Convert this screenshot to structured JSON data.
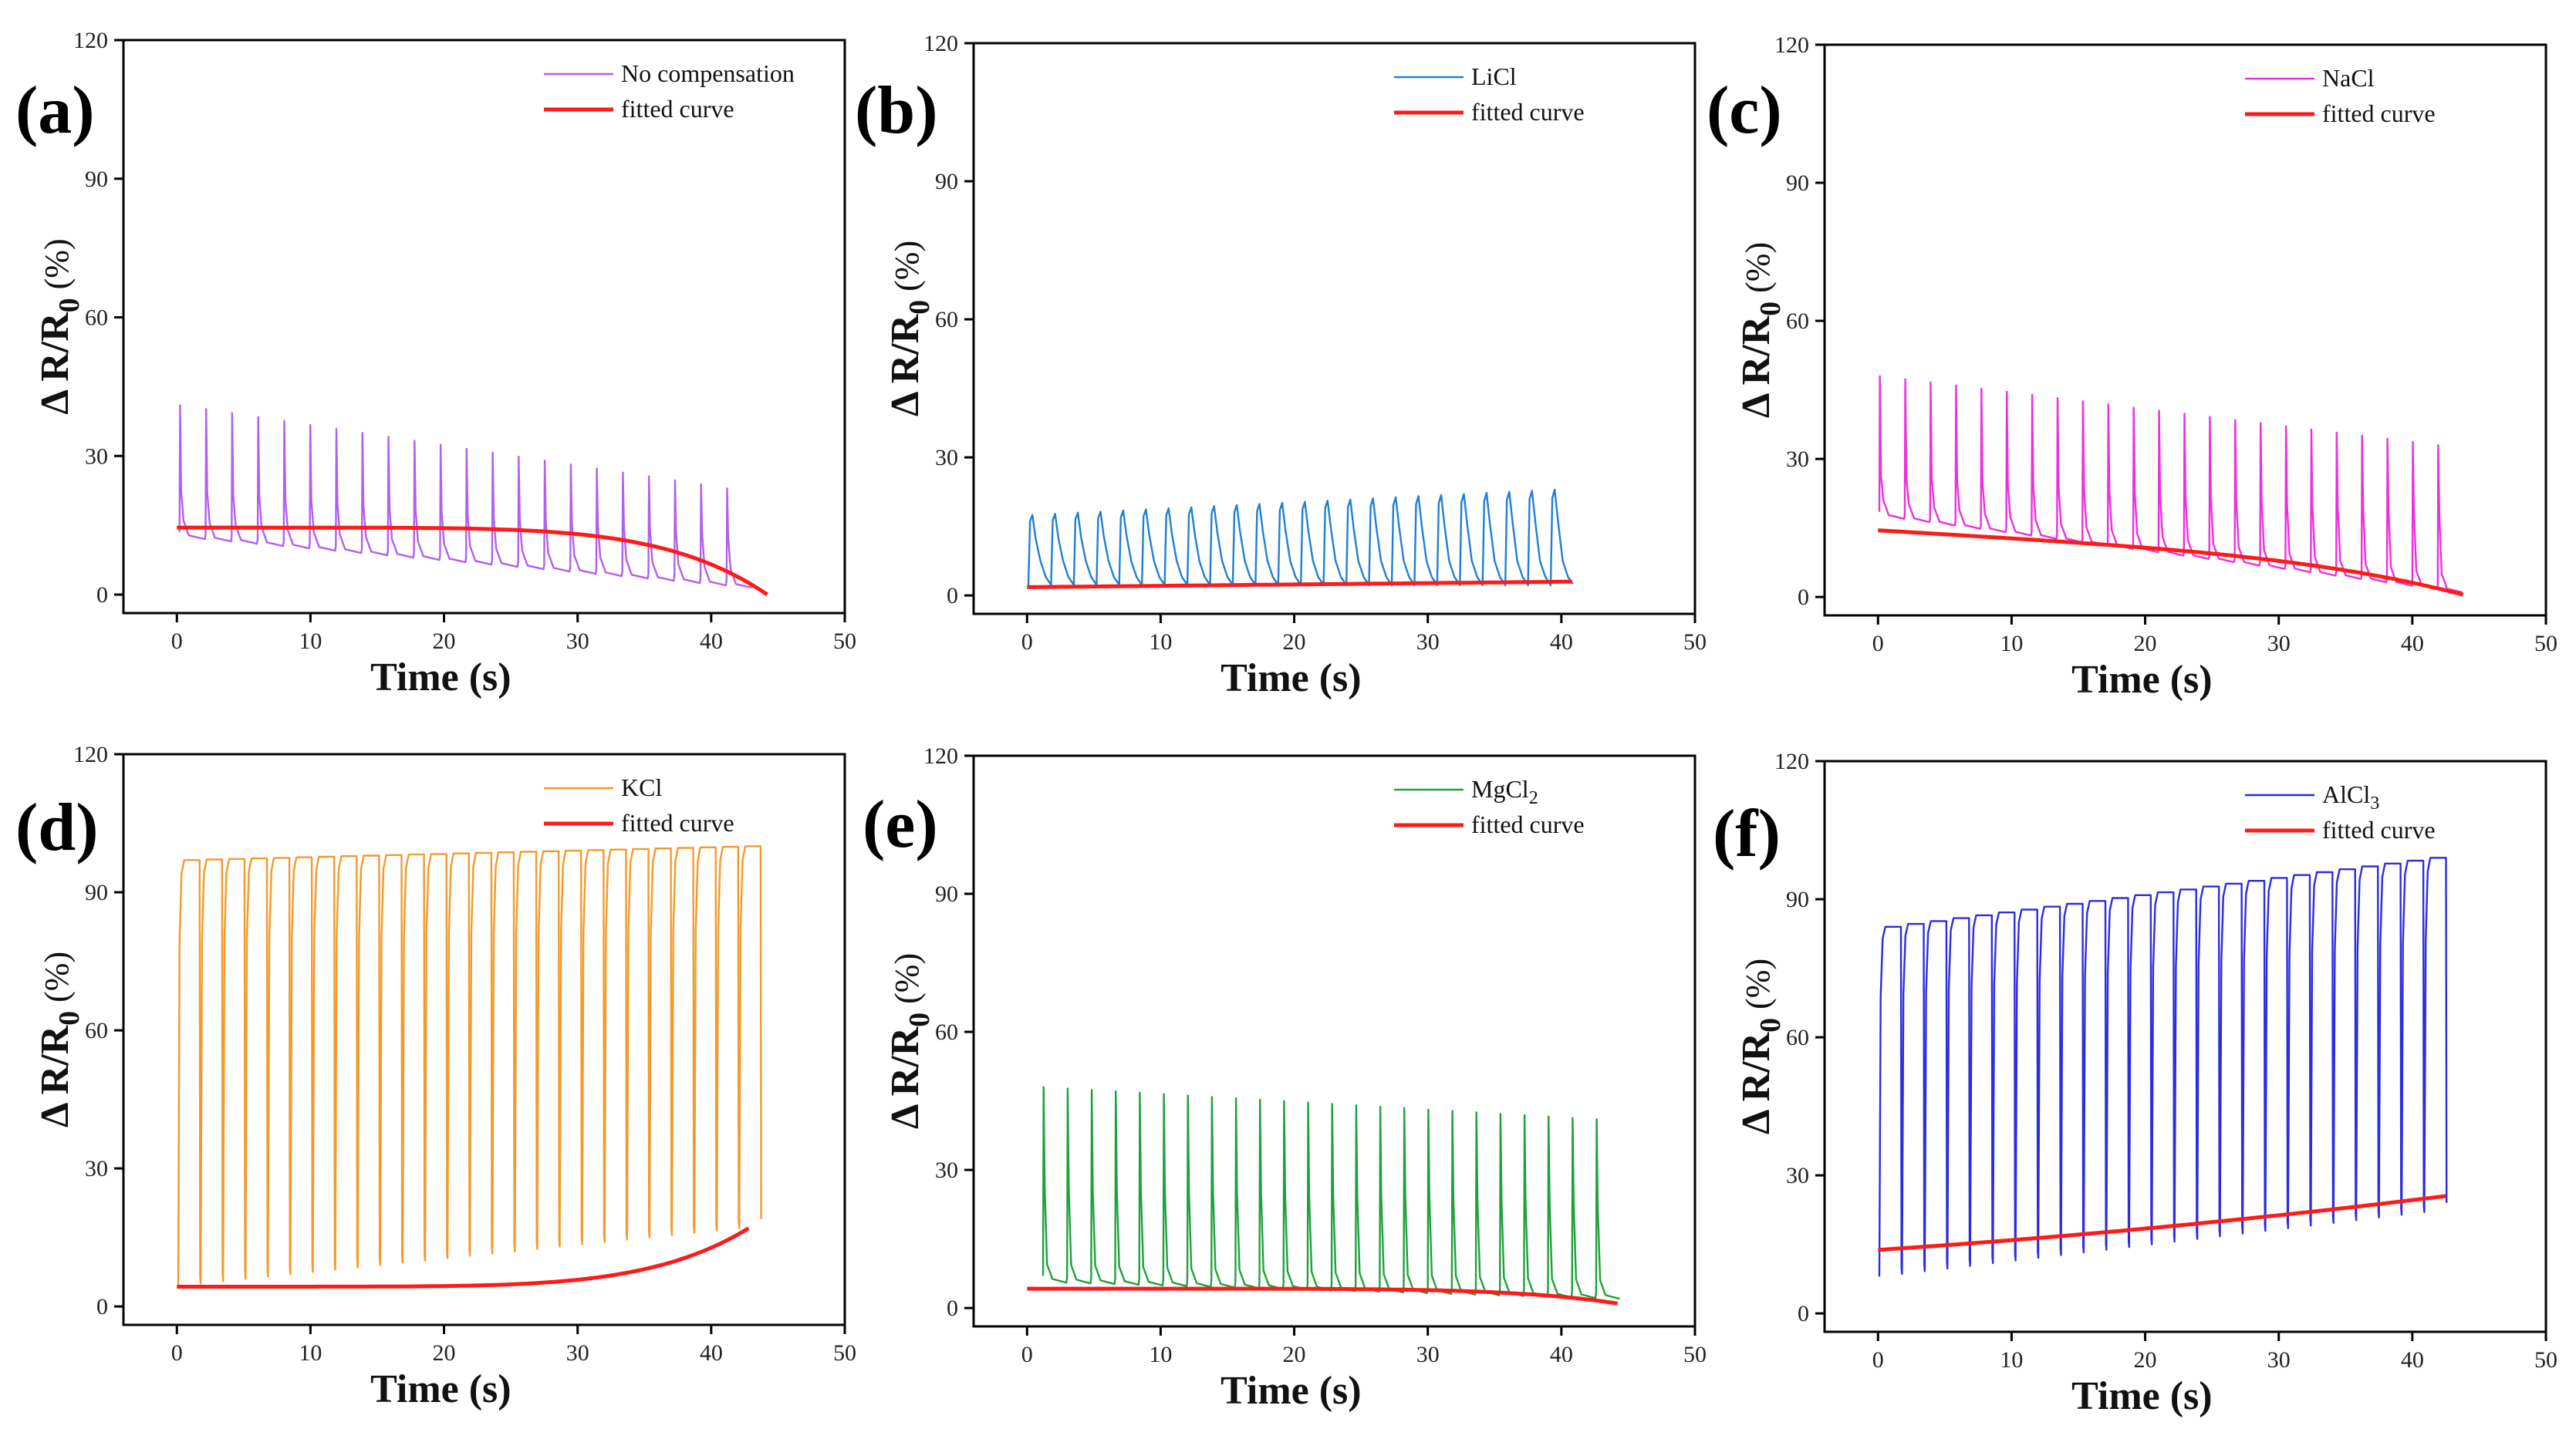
{
  "chart_data": [
    {
      "type": "line",
      "panel_label": "(a)",
      "xlabel": "Time (s)",
      "ylabel": "Δ R/R",
      "ylabel_sub": "0",
      "ylabel_unit": " (%)",
      "xlim": [
        -4,
        50
      ],
      "ylim": [
        -4,
        120
      ],
      "xticks": [
        0,
        10,
        20,
        30,
        40,
        50
      ],
      "yticks": [
        0,
        30,
        60,
        90,
        120
      ],
      "legend_position": "top-right",
      "series": [
        {
          "name": "No compensation",
          "color": "#b35ef0",
          "signal": "spikes",
          "cycle_period": 1.95,
          "cycles": 22,
          "t_start": 0.2,
          "t_end": 43.2,
          "peak_start": 41,
          "peak_end": 23,
          "base_start": 12,
          "base_end": 1.5
        },
        {
          "name": "fitted curve",
          "color": "#ff1a1a",
          "signal": "fit",
          "t_start": 0,
          "t_end": 44.2,
          "y_start": 14.5,
          "y_end": 0,
          "shape": "late-drop"
        }
      ]
    },
    {
      "type": "line",
      "panel_label": "(b)",
      "xlabel": "Time (s)",
      "ylabel": "Δ R/R",
      "ylabel_sub": "0",
      "ylabel_unit": " (%)",
      "xlim": [
        -4,
        50
      ],
      "ylim": [
        -4,
        120
      ],
      "xticks": [
        0,
        10,
        20,
        30,
        40,
        50
      ],
      "yticks": [
        0,
        30,
        60,
        90,
        120
      ],
      "legend_position": "top-right",
      "series": [
        {
          "name": "LiCl",
          "color": "#1f7fd4",
          "signal": "humps",
          "cycle_period": 1.7,
          "cycles": 24,
          "t_start": 0.1,
          "t_end": 40.8,
          "peak_start": 17.5,
          "peak_end": 23,
          "base_start": 3.5,
          "base_end": 3.5
        },
        {
          "name": "fitted curve",
          "color": "#ff1a1a",
          "signal": "fit",
          "t_start": 0,
          "t_end": 40.8,
          "y_start": 1.8,
          "y_end": 3.0,
          "shape": "linear"
        }
      ]
    },
    {
      "type": "line",
      "panel_label": "(c)",
      "xlabel": "Time (s)",
      "ylabel": "Δ R/R",
      "ylabel_sub": "0",
      "ylabel_unit": " (%)",
      "xlim": [
        -4,
        50
      ],
      "ylim": [
        -4,
        120
      ],
      "xticks": [
        0,
        10,
        20,
        30,
        40,
        50
      ],
      "yticks": [
        0,
        30,
        60,
        90,
        120
      ],
      "legend_position": "top-right",
      "series": [
        {
          "name": "NaCl",
          "color": "#ee2ee0",
          "signal": "spikes",
          "cycle_period": 1.9,
          "cycles": 23,
          "t_start": 0.1,
          "t_end": 43.5,
          "peak_start": 48,
          "peak_end": 33,
          "base_start": 17,
          "base_end": 1
        },
        {
          "name": "fitted curve",
          "color": "#ff1a1a",
          "signal": "fit",
          "t_start": 0,
          "t_end": 43.8,
          "y_start": 14.5,
          "y_end": 0.5,
          "shape": "accelerating-drop"
        }
      ]
    },
    {
      "type": "line",
      "panel_label": "(d)",
      "xlabel": "Time (s)",
      "ylabel": "Δ R/R",
      "ylabel_sub": "0",
      "ylabel_unit": " (%)",
      "xlim": [
        -4,
        50
      ],
      "ylim": [
        -4,
        120
      ],
      "xticks": [
        0,
        10,
        20,
        30,
        40,
        50
      ],
      "yticks": [
        0,
        30,
        60,
        90,
        120
      ],
      "legend_position": "top-right",
      "series": [
        {
          "name": "KCl",
          "color": "#f39a2a",
          "signal": "plateaus",
          "cycle_period": 1.68,
          "cycles": 26,
          "t_start": 0.1,
          "t_end": 42.8,
          "peak_start": 97,
          "peak_end": 100,
          "base_start": 4.5,
          "base_end": 17
        },
        {
          "name": "fitted curve",
          "color": "#ff1a1a",
          "signal": "fit",
          "t_start": 0,
          "t_end": 42.8,
          "y_start": 4.3,
          "y_end": 17,
          "shape": "late-rise"
        }
      ]
    },
    {
      "type": "line",
      "panel_label": "(e)",
      "xlabel": "Time (s)",
      "ylabel": "Δ R/R",
      "ylabel_sub": "0",
      "ylabel_unit": " (%)",
      "xlim": [
        -4,
        50
      ],
      "ylim": [
        -4,
        120
      ],
      "xticks": [
        0,
        10,
        20,
        30,
        40,
        50
      ],
      "yticks": [
        0,
        30,
        60,
        90,
        120
      ],
      "legend_position": "top-right",
      "series": [
        {
          "name": "MgCl",
          "name_sub": "2",
          "color": "#1fa13a",
          "signal": "spikes",
          "cycle_period": 1.8,
          "cycles": 24,
          "t_start": 1.2,
          "t_end": 44,
          "peak_start": 48,
          "peak_end": 41,
          "base_start": 5.5,
          "base_end": 2
        },
        {
          "name": "fitted curve",
          "color": "#ff1a1a",
          "signal": "fit",
          "t_start": 0,
          "t_end": 44.2,
          "y_start": 4.2,
          "y_end": 1.0,
          "shape": "late-drop"
        }
      ]
    },
    {
      "type": "line",
      "panel_label": "(f)",
      "xlabel": "Time (s)",
      "ylabel": "Δ R/R",
      "ylabel_sub": "0",
      "ylabel_unit": " (%)",
      "xlim": [
        -4,
        50
      ],
      "ylim": [
        -4,
        120
      ],
      "xticks": [
        0,
        10,
        20,
        30,
        40,
        50
      ],
      "yticks": [
        0,
        30,
        60,
        90,
        120
      ],
      "legend_position": "top-right",
      "series": [
        {
          "name": "AlCl",
          "name_sub": "3",
          "color": "#2c2ce0",
          "signal": "plateaus",
          "cycle_period": 1.7,
          "cycles": 25,
          "t_start": 0.1,
          "t_end": 42.5,
          "peak_start": 84,
          "peak_end": 99,
          "base_start": 8,
          "base_end": 22
        },
        {
          "name": "fitted curve",
          "color": "#ff1a1a",
          "signal": "fit",
          "t_start": 0,
          "t_end": 42.5,
          "y_start": 13.8,
          "y_end": 25.5,
          "shape": "slight-curve"
        }
      ]
    }
  ]
}
